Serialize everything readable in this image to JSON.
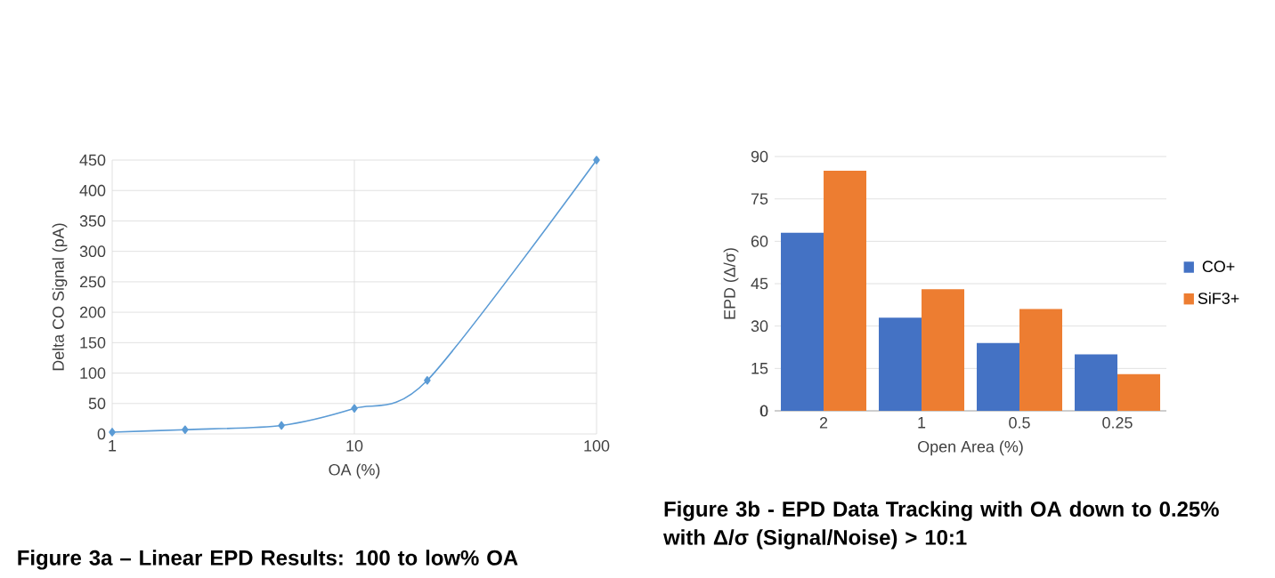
{
  "chart_data": [
    {
      "type": "line",
      "xlabel": "OA (%)",
      "ylabel": "Delta CO Signal (pA)",
      "log": "x",
      "x": [
        1,
        2,
        5,
        10,
        20,
        100
      ],
      "series": [
        {
          "color": "#5b9bd5",
          "values": [
            3,
            7,
            14,
            42,
            88,
            450
          ]
        }
      ],
      "xlim": [
        1,
        100
      ],
      "xticks": [
        1,
        10,
        100
      ],
      "ylim": [
        0,
        450
      ],
      "yticks": [
        0,
        50,
        100,
        150,
        200,
        250,
        300,
        350,
        400,
        450
      ],
      "grid": true,
      "marker": "diamond",
      "line_style": "solid",
      "legend": false,
      "annotations": [
        "Figure 3a – Linear EPD Results: 100 to low% OA"
      ]
    },
    {
      "type": "bar",
      "xlabel": "Open Area (%)",
      "ylabel": "EPD (Δ/σ)",
      "categories": [
        "2",
        "1",
        "0.5",
        "0.25"
      ],
      "series": [
        {
          "name": "CO+",
          "color": "#4472c4",
          "values": [
            63,
            33,
            24,
            20
          ]
        },
        {
          "name": "SiF3+",
          "color": "#ed7d31",
          "values": [
            85,
            43,
            36,
            13
          ]
        }
      ],
      "ylim": [
        0,
        90
      ],
      "yticks": [
        0,
        15,
        30,
        45,
        60,
        75,
        90
      ],
      "grid": "y",
      "legend": "right",
      "annotations": [
        "Figure 3b - EPD Data Tracking with OA down to 0.25% with Δ/σ (Signal/Noise) > 10:1"
      ]
    }
  ]
}
